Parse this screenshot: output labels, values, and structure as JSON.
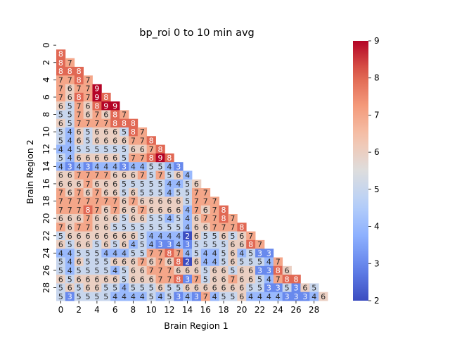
{
  "chart_data": {
    "type": "heatmap",
    "title": "bp_roi 0 to 10 min avg",
    "xlabel": "Brain Region 1",
    "ylabel": "Brain Region 2",
    "n": 30,
    "mask": "upper-triangle-including-diagonal",
    "x_tick_labels": [
      "0",
      "2",
      "4",
      "6",
      "8",
      "10",
      "12",
      "14",
      "16",
      "18",
      "20",
      "22",
      "24",
      "26",
      "28"
    ],
    "y_tick_labels": [
      "0",
      "2",
      "4",
      "6",
      "8",
      "10",
      "12",
      "14",
      "16",
      "18",
      "20",
      "22",
      "24",
      "26",
      "28"
    ],
    "colorbar": {
      "colormap": "coolwarm",
      "vmin": 2,
      "vmax": 9,
      "ticks": [
        "2",
        "3",
        "4",
        "5",
        "6",
        "7",
        "8",
        "9"
      ]
    },
    "rows": [
      [],
      [
        8
      ],
      [
        8,
        7
      ],
      [
        8,
        8,
        8
      ],
      [
        7,
        7,
        8,
        7
      ],
      [
        7,
        6,
        7,
        7,
        9
      ],
      [
        7,
        6,
        8,
        7,
        9,
        8
      ],
      [
        6,
        5,
        7,
        6,
        8,
        9,
        9
      ],
      [
        5,
        5,
        7,
        6,
        7,
        6,
        8,
        7
      ],
      [
        6,
        5,
        7,
        7,
        7,
        7,
        8,
        8,
        8
      ],
      [
        5,
        4,
        6,
        5,
        6,
        6,
        6,
        5,
        8,
        7
      ],
      [
        5,
        4,
        6,
        5,
        6,
        6,
        6,
        6,
        7,
        7,
        8
      ],
      [
        4,
        4,
        5,
        5,
        5,
        5,
        5,
        5,
        6,
        6,
        7,
        8
      ],
      [
        5,
        4,
        6,
        6,
        6,
        6,
        6,
        5,
        7,
        7,
        8,
        9,
        8
      ],
      [
        4,
        3,
        4,
        3,
        4,
        4,
        4,
        3,
        4,
        4,
        5,
        5,
        4,
        3
      ],
      [
        6,
        6,
        7,
        7,
        7,
        7,
        6,
        6,
        6,
        7,
        5,
        7,
        5,
        6,
        4
      ],
      [
        6,
        6,
        6,
        7,
        6,
        6,
        6,
        5,
        5,
        5,
        5,
        5,
        4,
        4,
        5,
        6
      ],
      [
        7,
        6,
        7,
        6,
        7,
        6,
        6,
        5,
        6,
        5,
        5,
        5,
        4,
        5,
        5,
        7,
        7
      ],
      [
        7,
        7,
        7,
        7,
        7,
        7,
        7,
        6,
        7,
        6,
        6,
        6,
        6,
        6,
        5,
        7,
        7,
        7
      ],
      [
        7,
        7,
        7,
        8,
        7,
        6,
        7,
        6,
        6,
        7,
        6,
        6,
        6,
        6,
        4,
        7,
        6,
        7,
        8
      ],
      [
        6,
        6,
        6,
        7,
        6,
        6,
        6,
        5,
        6,
        6,
        5,
        5,
        4,
        5,
        4,
        6,
        7,
        7,
        8,
        7
      ],
      [
        7,
        6,
        7,
        7,
        6,
        6,
        5,
        5,
        5,
        5,
        5,
        5,
        5,
        5,
        4,
        6,
        6,
        7,
        7,
        7,
        8
      ],
      [
        5,
        6,
        6,
        6,
        6,
        6,
        6,
        6,
        6,
        5,
        4,
        4,
        4,
        4,
        2,
        6,
        5,
        5,
        6,
        5,
        6,
        7
      ],
      [
        6,
        5,
        6,
        6,
        5,
        6,
        5,
        6,
        4,
        5,
        4,
        3,
        3,
        4,
        3,
        5,
        5,
        5,
        5,
        6,
        6,
        8,
        7
      ],
      [
        4,
        4,
        5,
        5,
        5,
        4,
        4,
        4,
        5,
        5,
        7,
        7,
        8,
        7,
        4,
        5,
        4,
        4,
        5,
        6,
        4,
        5,
        3,
        3
      ],
      [
        5,
        4,
        6,
        5,
        5,
        5,
        6,
        6,
        6,
        7,
        6,
        7,
        6,
        8,
        2,
        6,
        4,
        4,
        5,
        6,
        5,
        5,
        5,
        4,
        7
      ],
      [
        5,
        4,
        5,
        5,
        5,
        5,
        4,
        5,
        6,
        6,
        7,
        7,
        7,
        6,
        6,
        6,
        5,
        6,
        6,
        5,
        6,
        6,
        3,
        3,
        8,
        6
      ],
      [
        6,
        5,
        6,
        6,
        6,
        6,
        6,
        5,
        6,
        6,
        6,
        7,
        7,
        8,
        3,
        7,
        5,
        6,
        6,
        7,
        6,
        6,
        5,
        4,
        7,
        8,
        8
      ],
      [
        5,
        6,
        5,
        6,
        6,
        5,
        5,
        4,
        5,
        5,
        5,
        6,
        5,
        5,
        6,
        6,
        6,
        6,
        6,
        6,
        6,
        5,
        5,
        3,
        3,
        5,
        3,
        6,
        5
      ],
      [
        5,
        3,
        5,
        5,
        5,
        5,
        4,
        4,
        4,
        4,
        5,
        4,
        5,
        3,
        4,
        3,
        7,
        4,
        5,
        5,
        6,
        4,
        4,
        4,
        4,
        3,
        3,
        3,
        4,
        6
      ]
    ]
  }
}
